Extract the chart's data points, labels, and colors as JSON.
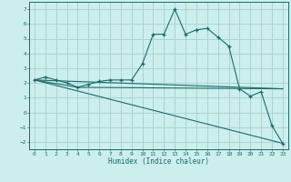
{
  "xlabel": "Humidex (Indice chaleur)",
  "background_color": "#cceeed",
  "grid_color": "#aad4d0",
  "line_color": "#1a6b6b",
  "xlim": [
    -0.5,
    23.5
  ],
  "ylim": [
    -2.5,
    7.5
  ],
  "xticks": [
    0,
    1,
    2,
    3,
    4,
    5,
    6,
    7,
    8,
    9,
    10,
    11,
    12,
    13,
    14,
    15,
    16,
    17,
    18,
    19,
    20,
    21,
    22,
    23
  ],
  "yticks": [
    -2,
    -1,
    0,
    1,
    2,
    3,
    4,
    5,
    6,
    7
  ],
  "line1_x": [
    0,
    1,
    2,
    3,
    4,
    5,
    6,
    7,
    8,
    9,
    10,
    11,
    12,
    13,
    14,
    15,
    16,
    17,
    18,
    19,
    20,
    21,
    22,
    23
  ],
  "line1_y": [
    2.2,
    2.4,
    2.2,
    2.0,
    1.7,
    1.9,
    2.1,
    2.2,
    2.2,
    2.2,
    3.3,
    5.3,
    5.3,
    7.0,
    5.3,
    5.6,
    5.7,
    5.1,
    4.5,
    1.6,
    1.1,
    1.4,
    -0.9,
    -2.1
  ],
  "line2_x": [
    0,
    23
  ],
  "line2_y": [
    2.2,
    -2.1
  ],
  "line3_x": [
    0,
    23
  ],
  "line3_y": [
    2.2,
    1.6
  ],
  "line4_x": [
    0,
    4,
    23
  ],
  "line4_y": [
    2.2,
    1.7,
    1.6
  ]
}
